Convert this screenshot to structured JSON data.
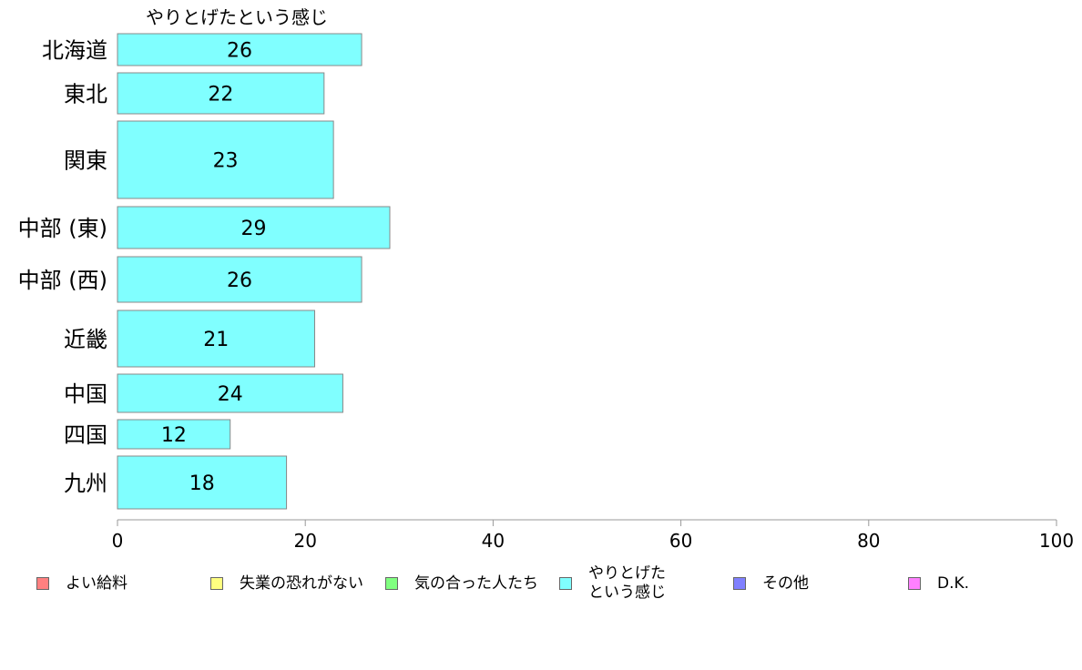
{
  "chart_data": {
    "type": "bar",
    "orientation": "horizontal",
    "title": "やりとげたという感じ",
    "categories": [
      "北海道",
      "東北",
      "関東",
      "中部 (東)",
      "中部 (西)",
      "近畿",
      "中国",
      "四国",
      "九州"
    ],
    "series": [
      {
        "name": "やりとげたという感じ",
        "values": [
          26,
          22,
          23,
          29,
          26,
          21,
          24,
          12,
          18
        ],
        "color": "#80ffff"
      }
    ],
    "xlim": [
      0,
      100
    ],
    "xticks": [
      0,
      20,
      40,
      60,
      80,
      100
    ],
    "grid": false,
    "legend_placement": "bottom"
  },
  "legend": [
    {
      "label": "よい給料",
      "color": "#ff8080"
    },
    {
      "label": "失業の恐れがない",
      "color": "#ffff80"
    },
    {
      "label": "気の合った人たち",
      "color": "#80ff80"
    },
    {
      "label": "やりとげた\nという感じ",
      "color": "#80ffff"
    },
    {
      "label": "その他",
      "color": "#8080ff"
    },
    {
      "label": "D.K.",
      "color": "#ff80ff"
    }
  ]
}
